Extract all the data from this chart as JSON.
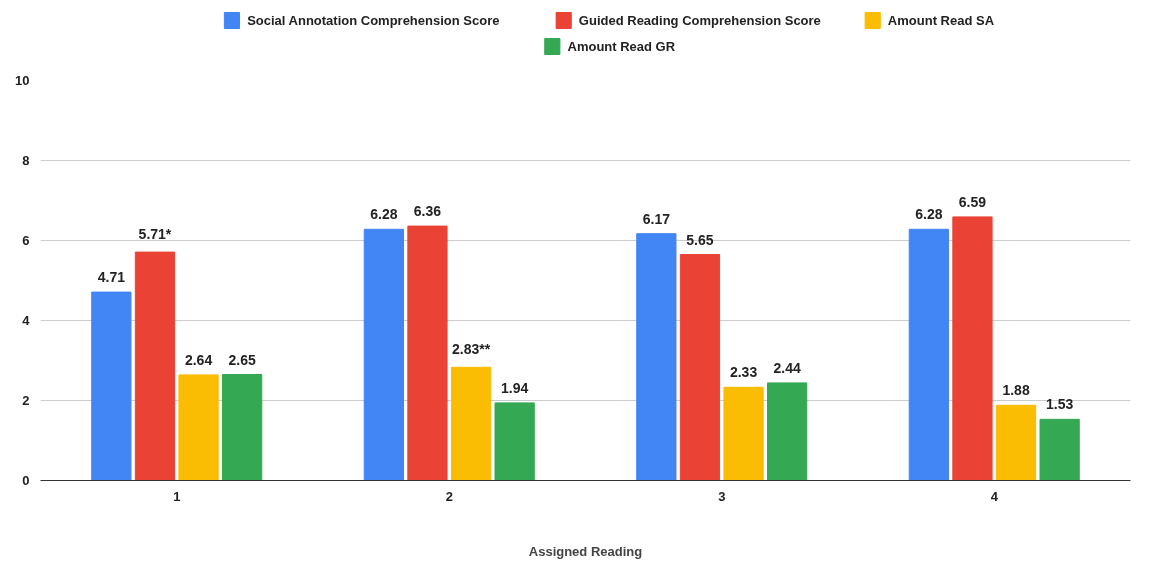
{
  "chart_data": {
    "type": "bar",
    "xlabel": "Assigned Reading",
    "categories": [
      "1",
      "2",
      "3",
      "4"
    ],
    "series": [
      {
        "name": "Social Annotation Comprehension Score",
        "color": "#4285f4",
        "values": [
          4.71,
          6.28,
          6.17,
          6.28
        ],
        "value_labels": [
          "4.71",
          "6.28",
          "6.17",
          "6.28"
        ]
      },
      {
        "name": "Guided Reading Comprehension Score",
        "color": "#ea4335",
        "values": [
          5.71,
          6.36,
          5.65,
          6.59
        ],
        "value_labels": [
          "5.71*",
          "6.36",
          "5.65",
          "6.59"
        ]
      },
      {
        "name": "Amount Read SA",
        "color": "#fbbc04",
        "values": [
          2.64,
          2.83,
          2.33,
          1.88
        ],
        "value_labels": [
          "2.64",
          "2.83**",
          "2.33",
          "1.88"
        ]
      },
      {
        "name": "Amount Read GR",
        "color": "#34a853",
        "values": [
          2.65,
          1.94,
          2.44,
          1.53
        ],
        "value_labels": [
          "2.65",
          "1.94",
          "2.44",
          "1.53"
        ]
      }
    ],
    "ylim": [
      0,
      10
    ],
    "yticks": [
      0,
      2,
      4,
      6,
      8,
      10
    ],
    "grid": "y",
    "legend": "top"
  }
}
